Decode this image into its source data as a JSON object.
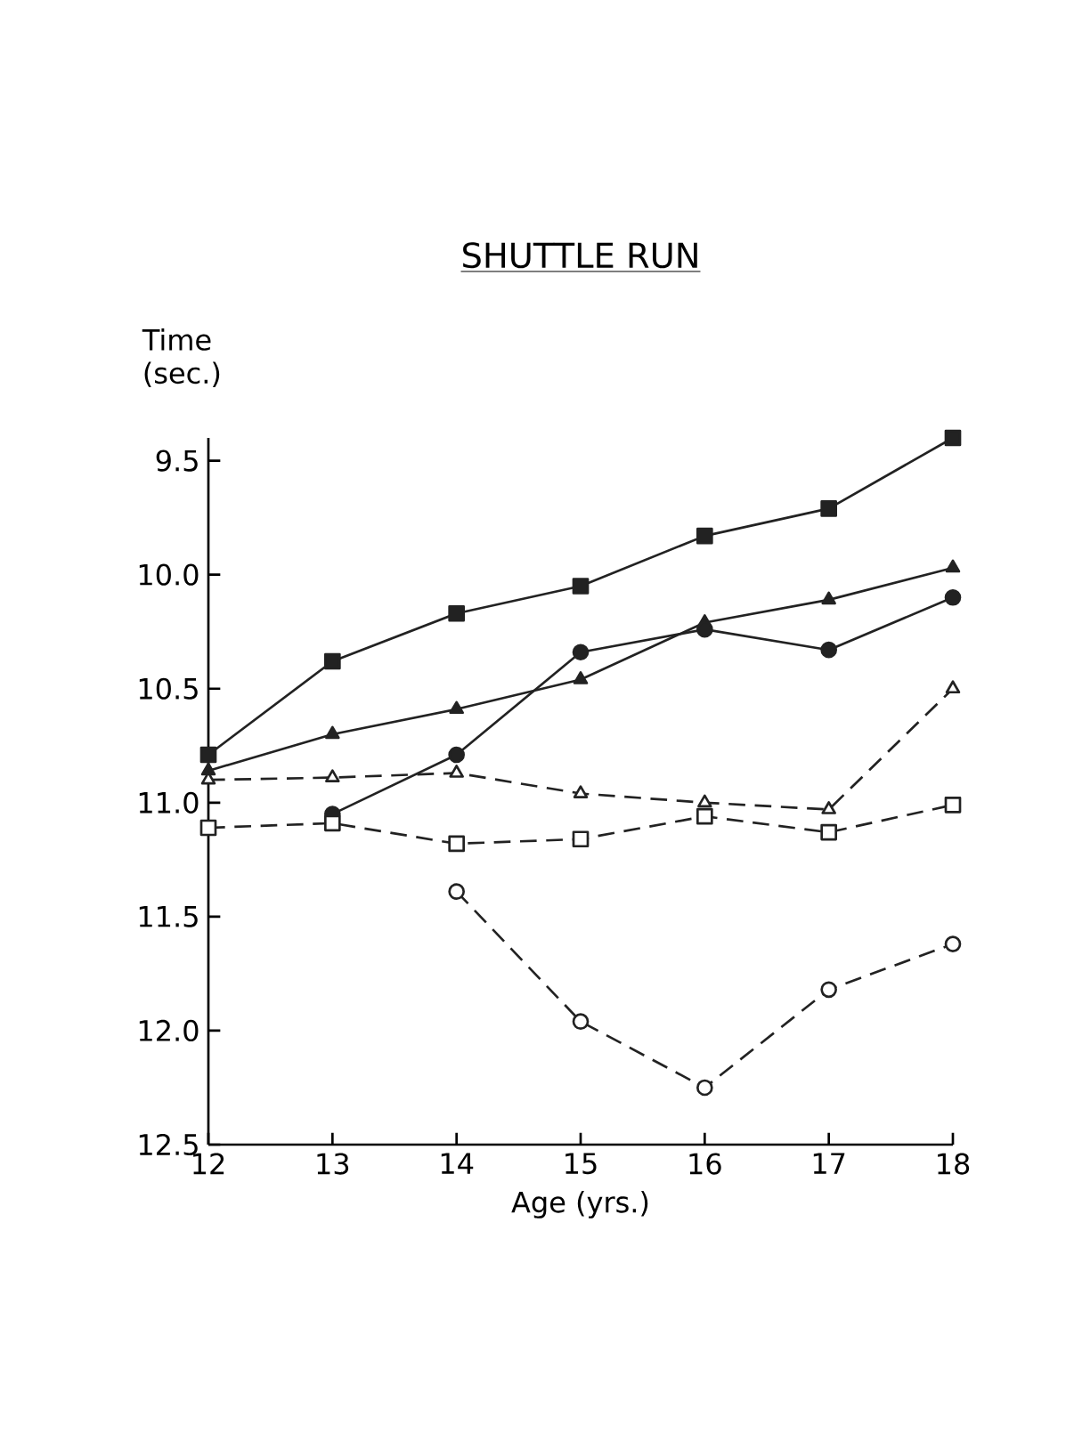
{
  "chart_data": {
    "type": "line",
    "title": "SHUTTLE RUN",
    "xlabel": "Age (yrs.)",
    "ylabel": "Time (sec.)",
    "x": [
      12,
      13,
      14,
      15,
      16,
      17,
      18
    ],
    "series": [
      {
        "color": "#222222",
        "marker": "square",
        "line_style": "solid",
        "values": [
          10.79,
          10.38,
          10.17,
          10.05,
          9.83,
          9.71,
          9.4
        ]
      },
      {
        "color": "#222222",
        "marker": "triangle",
        "line_style": "solid",
        "values": [
          10.86,
          10.7,
          10.59,
          10.46,
          10.21,
          10.11,
          9.97
        ]
      },
      {
        "color": "#222222",
        "marker": "circle",
        "line_style": "solid",
        "values": [
          null,
          11.05,
          10.79,
          10.34,
          10.24,
          10.33,
          10.1
        ]
      },
      {
        "color": "#222222",
        "marker": "triangle",
        "line_style": "dashed",
        "values": [
          10.9,
          10.89,
          10.87,
          10.96,
          11.0,
          11.03,
          10.5
        ]
      },
      {
        "color": "#222222",
        "marker": "square",
        "line_style": "dashed",
        "values": [
          11.11,
          11.09,
          11.18,
          11.16,
          11.06,
          11.13,
          11.01
        ]
      },
      {
        "color": "#222222",
        "marker": "circle",
        "line_style": "dashed",
        "values": [
          null,
          null,
          11.39,
          11.96,
          12.25,
          11.82,
          11.62
        ]
      }
    ],
    "xlim": [
      12,
      18
    ],
    "ylim": [
      12.5,
      9.4
    ],
    "xticks": [
      12,
      13,
      14,
      15,
      16,
      17,
      18
    ],
    "yticks": [
      {
        "value": 9.5,
        "label": "9.5"
      },
      {
        "value": 10.0,
        "label": "10.0"
      },
      {
        "value": 10.5,
        "label": "10.5"
      },
      {
        "value": 11.0,
        "label": "11.0"
      },
      {
        "value": 11.5,
        "label": "11.5"
      },
      {
        "value": 12.0,
        "label": "12.0"
      },
      {
        "value": 12.5,
        "label": "12.5"
      }
    ],
    "grid": false
  }
}
